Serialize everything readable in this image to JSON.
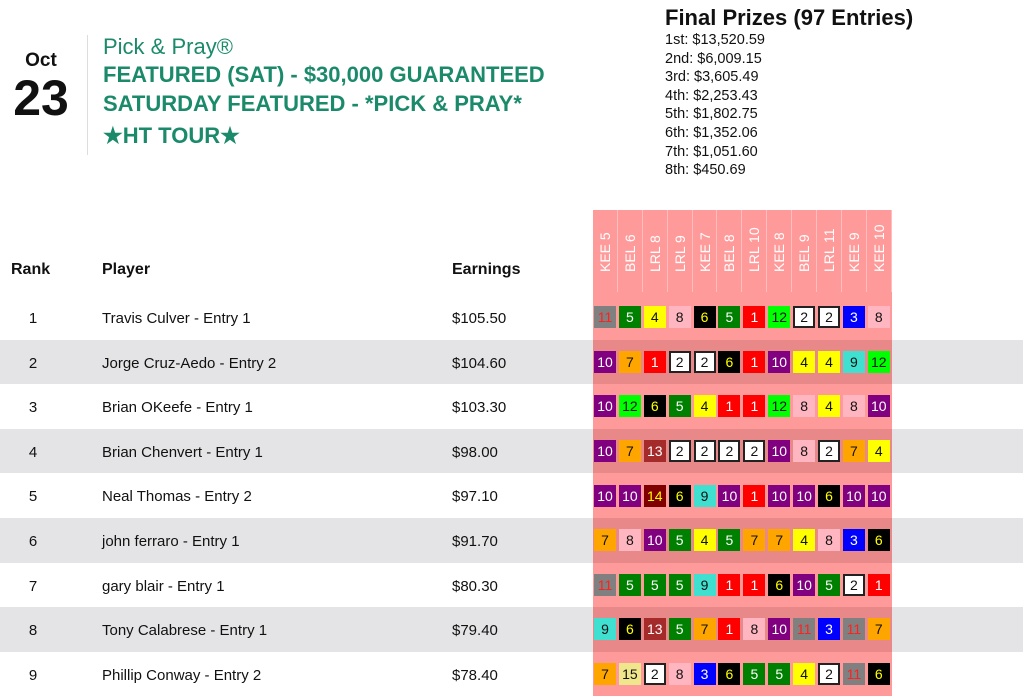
{
  "date": {
    "month": "Oct",
    "day": "23"
  },
  "contest": {
    "brand": "Pick & Pray®",
    "line1": "FEATURED (SAT) - $30,000 GUARANTEED",
    "line2": "SATURDAY FEATURED - *PICK & PRAY*",
    "line3": "★HT TOUR★"
  },
  "prizes": {
    "heading": "Final Prizes (97 Entries)",
    "items": [
      "1st: $13,520.59",
      "2nd: $6,009.15",
      "3rd: $3,605.49",
      "4th: $2,253.43",
      "5th: $1,802.75",
      "6th: $1,352.06",
      "7th: $1,051.60",
      "8th: $450.69"
    ]
  },
  "table": {
    "headers": {
      "rank": "Rank",
      "player": "Player",
      "earnings": "Earnings"
    },
    "races": [
      "KEE 5",
      "BEL 6",
      "LRL 8",
      "LRL 9",
      "KEE 7",
      "BEL 8",
      "LRL 10",
      "KEE 8",
      "BEL 9",
      "LRL 11",
      "KEE 9",
      "KEE 10"
    ],
    "rows": [
      {
        "rank": "1",
        "player": "Travis Culver - Entry 1",
        "earnings": "$105.50",
        "picks": [
          "11",
          "5",
          "4",
          "8",
          "6",
          "5",
          "1",
          "12",
          "2",
          "2",
          "3",
          "8"
        ]
      },
      {
        "rank": "2",
        "player": "Jorge Cruz-Aedo - Entry 2",
        "earnings": "$104.60",
        "picks": [
          "10",
          "7",
          "1",
          "2",
          "2",
          "6",
          "1",
          "10",
          "4",
          "4",
          "9",
          "12"
        ]
      },
      {
        "rank": "3",
        "player": "Brian OKeefe - Entry 1",
        "earnings": "$103.30",
        "picks": [
          "10",
          "12",
          "6",
          "5",
          "4",
          "1",
          "1",
          "12",
          "8",
          "4",
          "8",
          "10"
        ]
      },
      {
        "rank": "4",
        "player": "Brian Chenvert - Entry 1",
        "earnings": "$98.00",
        "picks": [
          "10",
          "7",
          "13",
          "2",
          "2",
          "2",
          "2",
          "10",
          "8",
          "2",
          "7",
          "4"
        ]
      },
      {
        "rank": "5",
        "player": "Neal Thomas - Entry 2",
        "earnings": "$97.10",
        "picks": [
          "10",
          "10",
          "14",
          "6",
          "9",
          "10",
          "1",
          "10",
          "10",
          "6",
          "10",
          "10"
        ]
      },
      {
        "rank": "6",
        "player": "john ferraro - Entry 1",
        "earnings": "$91.70",
        "picks": [
          "7",
          "8",
          "10",
          "5",
          "4",
          "5",
          "7",
          "7",
          "4",
          "8",
          "3",
          "6"
        ]
      },
      {
        "rank": "7",
        "player": "gary blair - Entry 1",
        "earnings": "$80.30",
        "picks": [
          "11",
          "5",
          "5",
          "5",
          "9",
          "1",
          "1",
          "6",
          "10",
          "5",
          "2",
          "1"
        ]
      },
      {
        "rank": "8",
        "player": "Tony Calabrese - Entry 1",
        "earnings": "$79.40",
        "picks": [
          "9",
          "6",
          "13",
          "5",
          "7",
          "1",
          "8",
          "10",
          "11",
          "3",
          "11",
          "7"
        ]
      },
      {
        "rank": "9",
        "player": "Phillip Conway - Entry 2",
        "earnings": "$78.40",
        "picks": [
          "7",
          "15",
          "2",
          "8",
          "3",
          "6",
          "5",
          "5",
          "4",
          "2",
          "11",
          "6"
        ]
      }
    ]
  },
  "saddle_colors": {
    "1": [
      "#ff0000",
      "#ffffff"
    ],
    "2": [
      "#ffffff",
      "#111111"
    ],
    "3": [
      "#0000ff",
      "#ffffff"
    ],
    "4": [
      "#ffff00",
      "#111111"
    ],
    "5": [
      "#008000",
      "#ffffff"
    ],
    "6": [
      "#000000",
      "#ffff00"
    ],
    "7": [
      "#ffa500",
      "#111111"
    ],
    "8": [
      "#ffb6c1",
      "#111111"
    ],
    "9": [
      "#40e0d0",
      "#111111"
    ],
    "10": [
      "#800080",
      "#ffffff"
    ],
    "11": [
      "#808080",
      "#ff2020"
    ],
    "12": [
      "#00ff00",
      "#111111"
    ],
    "13": [
      "#a52a2a",
      "#ffffff"
    ],
    "14": [
      "#800000",
      "#ffff00"
    ],
    "15": [
      "#f0e68c",
      "#111111"
    ]
  },
  "colors": {
    "brand_green": "#1b8a6b",
    "grid_pink": "#ff9a9a",
    "alt_row": "#e4e4e6"
  }
}
